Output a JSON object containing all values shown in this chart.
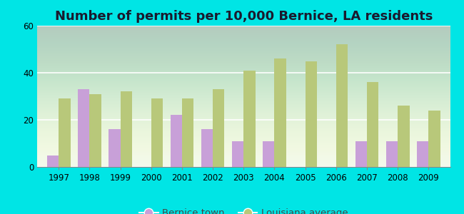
{
  "title": "Number of permits per 10,000 Bernice, LA residents",
  "years": [
    1997,
    1998,
    1999,
    2000,
    2001,
    2002,
    2003,
    2004,
    2005,
    2006,
    2007,
    2008,
    2009
  ],
  "bernice": [
    5,
    33,
    16,
    0,
    22,
    16,
    11,
    11,
    0,
    0,
    11,
    11,
    11
  ],
  "louisiana": [
    29,
    31,
    32,
    29,
    29,
    33,
    41,
    46,
    45,
    52,
    36,
    26,
    24
  ],
  "bernice_color": "#c8a0d8",
  "louisiana_color": "#b8c87a",
  "bg_color": "#00e5e5",
  "ylim": [
    0,
    60
  ],
  "yticks": [
    0,
    20,
    40,
    60
  ],
  "bar_width": 0.38,
  "legend_bernice": "Bernice town",
  "legend_louisiana": "Louisiana average",
  "title_fontsize": 13,
  "tick_fontsize": 8.5,
  "legend_fontsize": 9.5
}
